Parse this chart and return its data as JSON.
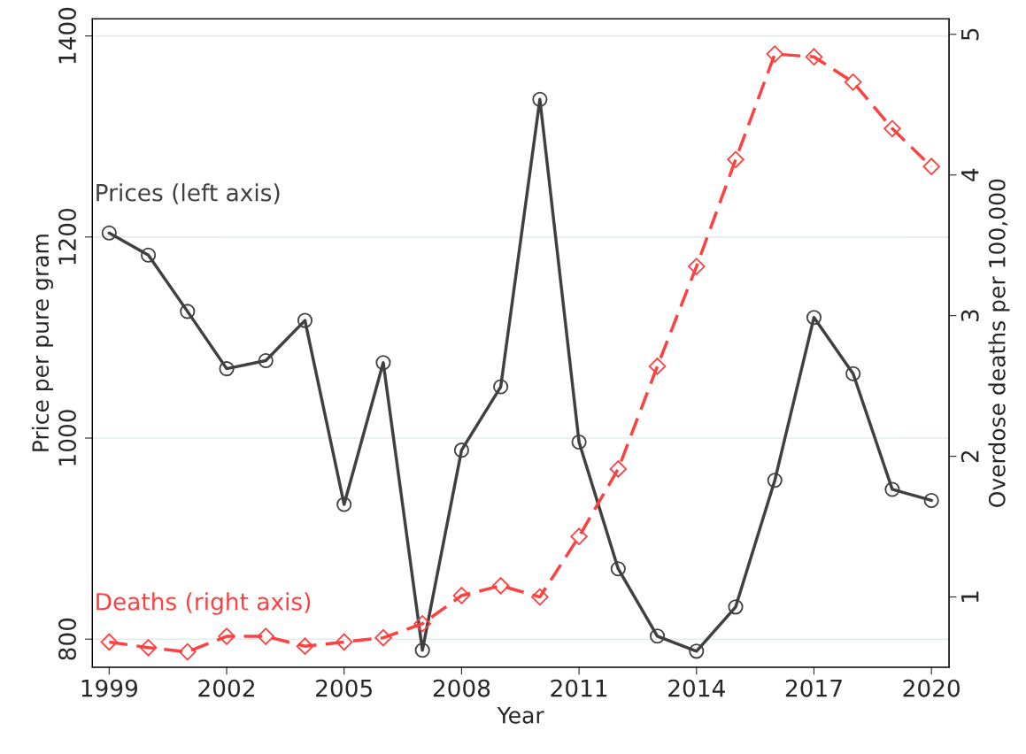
{
  "chart_data": {
    "type": "line",
    "xlabel": "Year",
    "ylabel": "Price per pure gram",
    "y2label": "Overdose deaths per 100,000",
    "x": [
      1999,
      2000,
      2001,
      2002,
      2003,
      2004,
      2005,
      2006,
      2007,
      2008,
      2009,
      2010,
      2011,
      2012,
      2013,
      2014,
      2015,
      2016,
      2017,
      2018,
      2019,
      2020
    ],
    "series": [
      {
        "name": "Prices (left axis)",
        "color": "#404040",
        "marker": "circle",
        "line_style": "solid",
        "values": [
          1204,
          1182,
          1126,
          1069,
          1077,
          1117,
          934,
          1075,
          789,
          988,
          1051,
          1337,
          996,
          870,
          803,
          788,
          832,
          958,
          1120,
          1064,
          949,
          938
        ]
      },
      {
        "name": "Deaths (right axis)",
        "color": "#ff4040",
        "marker": "diamond",
        "line_style": "dashed",
        "axis": "y2",
        "values": [
          0.68,
          0.64,
          0.61,
          0.72,
          0.72,
          0.65,
          0.68,
          0.71,
          0.81,
          1.01,
          1.08,
          1.0,
          1.43,
          1.91,
          2.64,
          3.35,
          4.11,
          4.86,
          4.84,
          4.66,
          4.33,
          4.06
        ]
      }
    ],
    "xlim": [
      1998.57,
      2020.45
    ],
    "xticks": [
      1999,
      2002,
      2005,
      2008,
      2011,
      2014,
      2017,
      2020
    ],
    "ylim": [
      772,
      1417
    ],
    "yticks": [
      800,
      1000,
      1200,
      1400
    ],
    "y2lim": [
      0.5,
      5.11
    ],
    "y2ticks": [
      1,
      2,
      3,
      4,
      5
    ],
    "grid": "y",
    "legend": false
  }
}
